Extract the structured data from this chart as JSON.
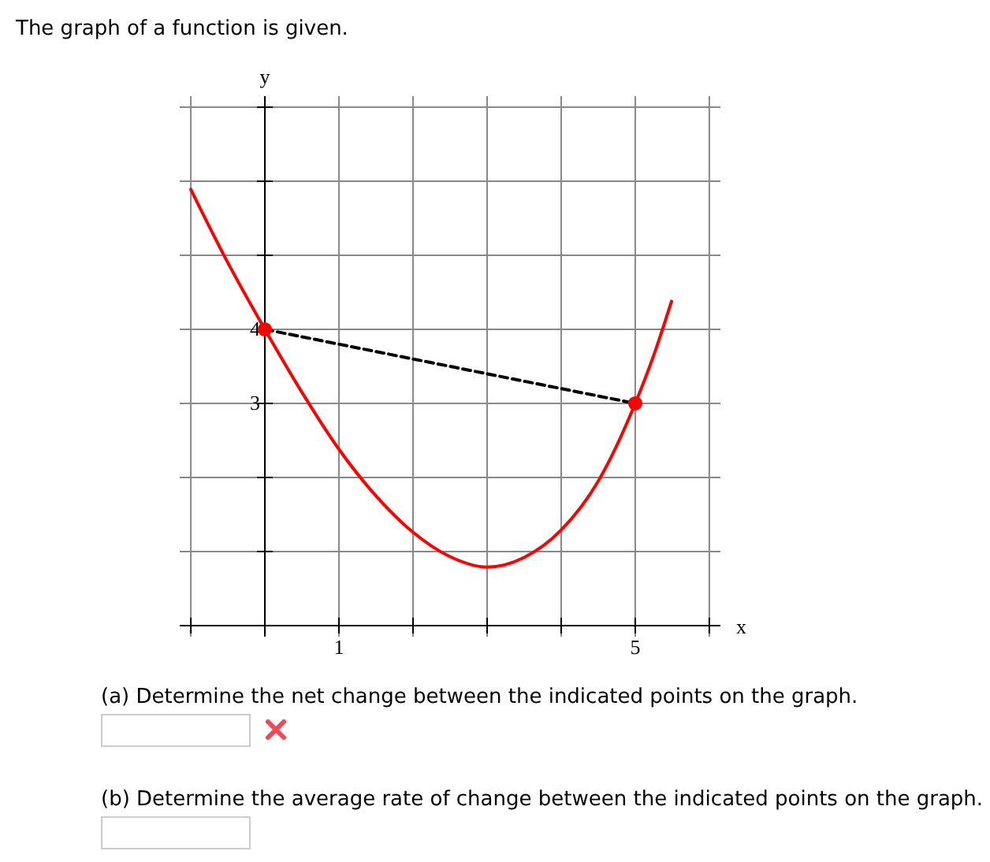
{
  "chart_data": {
    "type": "line",
    "title": "The graph of a function is given.",
    "xlabel": "x",
    "ylabel": "y",
    "xlim": [
      -1.15,
      6.15
    ],
    "ylim": [
      -0.15,
      7.15
    ],
    "xticks": [
      {
        "value": -1,
        "label": null
      },
      {
        "value": 0,
        "label": null
      },
      1,
      {
        "value": 2,
        "label": null
      },
      {
        "value": 3,
        "label": null
      },
      {
        "value": 4,
        "label": null
      },
      5,
      {
        "value": 6,
        "label": null
      }
    ],
    "yticks": [
      {
        "value": 0,
        "label": null
      },
      {
        "value": 1,
        "label": null
      },
      {
        "value": 2,
        "label": null
      },
      3,
      4,
      {
        "value": 5,
        "label": null
      },
      {
        "value": 6,
        "label": null
      },
      {
        "value": 7,
        "label": null
      }
    ],
    "grid": true,
    "series": [
      {
        "color": "#ff0000",
        "marker": "none",
        "line_style": "solid",
        "x": [
          -1,
          -0.5,
          0,
          0.5,
          1,
          1.5,
          2,
          2.5,
          3,
          3.5,
          4,
          4.5,
          5,
          5.25,
          5.49
        ],
        "values": [
          5.89,
          4.9,
          4,
          3.15,
          2.38,
          1.75,
          1.26,
          0.93,
          0.79,
          0.92,
          1.29,
          1.95,
          3,
          3.65,
          4.38
        ]
      },
      {
        "color": "#000000",
        "marker": "none",
        "line_style": "dashed",
        "x": [
          0,
          5
        ],
        "values": [
          4,
          3
        ]
      },
      {
        "type": "scatter",
        "color": "#ff0000",
        "marker": "circle",
        "x": [
          0,
          5
        ],
        "values": [
          4,
          3
        ]
      }
    ],
    "annotations": [
      "(a) Determine the net change between the indicated points on the graph.",
      "(b) Determine the average rate of change between the indicated points on the graph."
    ]
  }
}
